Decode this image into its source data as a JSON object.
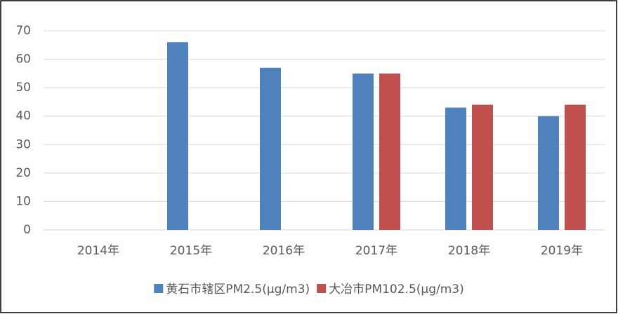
{
  "chart_data": {
    "type": "bar",
    "categories": [
      "2014年",
      "2015年",
      "2016年",
      "2017年",
      "2018年",
      "2019年"
    ],
    "series": [
      {
        "name": "黄石市辖区PM2.5(μg/m3)",
        "color": "#4f81bd",
        "values": [
          null,
          66,
          57,
          55,
          43,
          40
        ]
      },
      {
        "name": "大冶市PM102.5(μg/m3)",
        "color": "#c0504d",
        "values": [
          null,
          null,
          null,
          55,
          44,
          44
        ]
      }
    ],
    "ylim": [
      0,
      70
    ],
    "yticks": [
      0,
      10,
      20,
      30,
      40,
      50,
      60,
      70
    ],
    "grid": true,
    "legend": "bottom"
  }
}
